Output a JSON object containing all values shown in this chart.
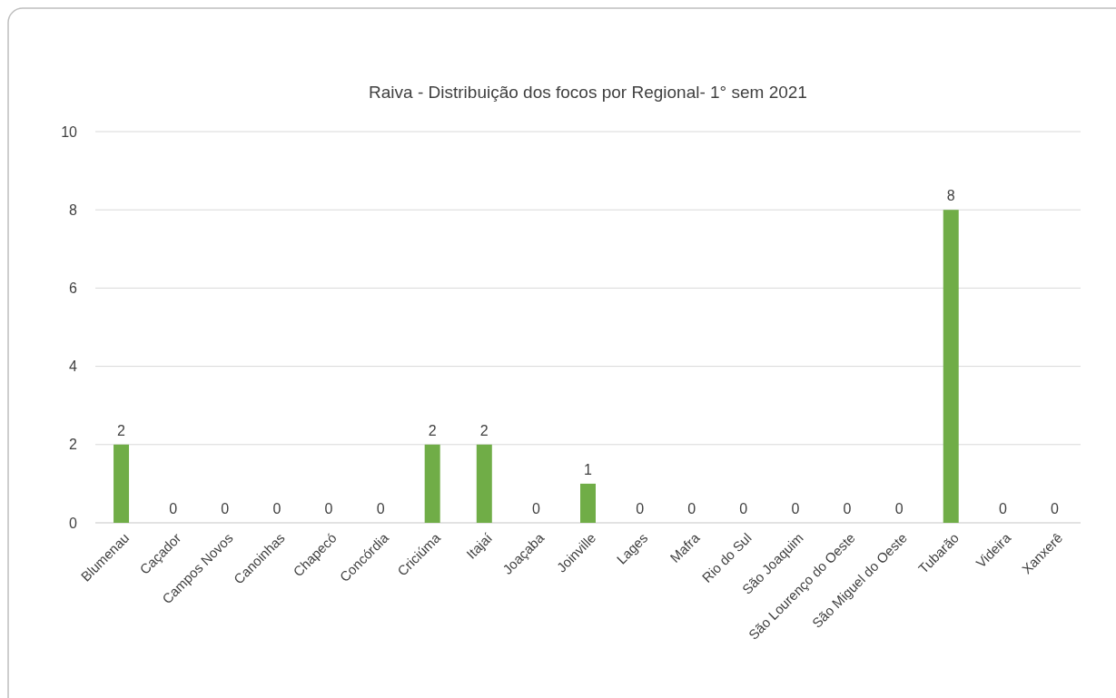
{
  "chart_data": {
    "type": "bar",
    "title": "Raiva - Distribuição dos focos por Regional- 1° sem 2021",
    "categories": [
      "Blumenau",
      "Caçador",
      "Campos Novos",
      "Canoinhas",
      "Chapecó",
      "Concórdia",
      "Criciúma",
      "Itajaí",
      "Joaçaba",
      "Joinville",
      "Lages",
      "Mafra",
      "Rio do Sul",
      "São Joaquim",
      "São Lourenço do Oeste",
      "São Miguel do Oeste",
      "Tubarão",
      "Videira",
      "Xanxerê"
    ],
    "values": [
      2,
      0,
      0,
      0,
      0,
      0,
      2,
      2,
      0,
      1,
      0,
      0,
      0,
      0,
      0,
      0,
      8,
      0,
      0
    ],
    "color": "#70ad47",
    "ylim": [
      0,
      10
    ],
    "yticks": [
      0,
      2,
      4,
      6,
      8,
      10
    ],
    "grid": "y",
    "data_labels": true
  }
}
